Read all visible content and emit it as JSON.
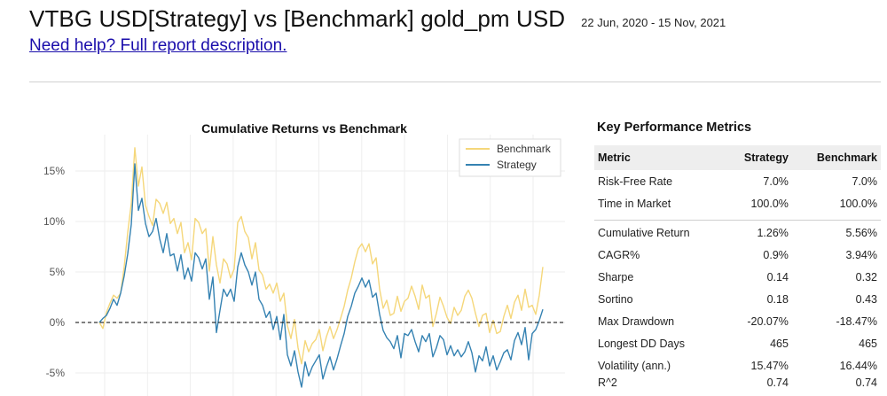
{
  "header": {
    "title": "VTBG USD[Strategy] vs [Benchmark] gold_pm USD",
    "date_range": "22 Jun, 2020 - 15 Nov, 2021",
    "help_link": "Need help? Full report description."
  },
  "chart_data": {
    "type": "line",
    "title": "Cumulative Returns vs Benchmark",
    "xlabel": "",
    "ylabel": "",
    "y_ticks": [
      "15%",
      "10%",
      "5%",
      "0%",
      "-5%"
    ],
    "y_tick_values": [
      15,
      10,
      5,
      0,
      -5
    ],
    "ylim": [
      -6.5,
      18.5
    ],
    "grid": true,
    "baseline": 0,
    "legend": "top-right",
    "x": [
      0,
      2,
      4,
      6,
      8,
      10,
      12,
      14,
      16,
      18,
      20,
      22,
      24,
      26,
      28,
      30,
      32,
      34,
      36,
      38,
      40,
      42,
      44,
      46,
      48,
      50,
      52,
      54,
      56,
      58,
      60,
      62,
      64,
      66,
      68,
      70,
      72,
      74,
      76,
      78,
      80,
      82,
      84,
      86,
      88,
      90,
      92,
      94,
      96,
      98,
      100,
      102,
      104,
      106,
      108,
      110,
      112,
      114,
      116,
      118,
      120,
      122,
      124,
      126,
      128,
      130,
      132,
      134,
      136,
      138,
      140,
      142,
      144,
      146,
      148,
      150,
      152,
      154,
      156,
      158,
      160,
      162,
      164,
      166,
      168,
      170,
      172,
      174,
      176,
      178,
      180,
      182,
      184,
      186,
      188,
      190,
      192,
      194,
      196,
      198,
      200,
      202,
      204,
      206,
      208,
      210,
      212,
      214,
      216,
      218,
      220,
      222,
      224,
      226,
      228,
      230,
      232,
      234,
      236,
      238,
      240,
      242,
      244,
      246,
      248,
      250
    ],
    "series": [
      {
        "name": "Benchmark",
        "color": "#f5d77a",
        "values": [
          0.0,
          -0.6,
          1.0,
          1.9,
          2.7,
          2.4,
          2.9,
          5.5,
          8.9,
          11.8,
          17.3,
          13.5,
          15.4,
          11.6,
          10.5,
          9.6,
          12.2,
          11.8,
          10.8,
          11.9,
          9.8,
          10.3,
          8.8,
          9.9,
          6.9,
          7.9,
          6.2,
          10.3,
          9.9,
          8.8,
          9.3,
          5.1,
          8.5,
          5.7,
          3.9,
          6.3,
          5.8,
          4.4,
          5.3,
          9.9,
          10.5,
          9.0,
          8.4,
          6.3,
          7.9,
          5.2,
          4.7,
          3.3,
          3.8,
          2.9,
          3.9,
          2.1,
          2.9,
          -0.3,
          -1.6,
          0.3,
          -2.5,
          -4.1,
          -1.8,
          -2.9,
          -2.1,
          -1.7,
          -0.7,
          -2.8,
          -1.4,
          -0.4,
          -1.6,
          -0.7,
          0.4,
          1.6,
          3.2,
          4.4,
          6.0,
          7.3,
          7.8,
          7.0,
          7.8,
          5.8,
          6.4,
          3.3,
          1.4,
          2.2,
          0.7,
          0.9,
          2.6,
          1.1,
          2.1,
          2.4,
          3.6,
          2.6,
          1.3,
          3.7,
          2.4,
          2.7,
          -0.4,
          0.9,
          2.5,
          1.6,
          0.5,
          -0.1,
          1.5,
          0.7,
          1.2,
          2.6,
          3.2,
          2.4,
          0.9,
          -0.4,
          0.7,
          0.9,
          -1.0,
          0.2,
          -1.1,
          -0.9,
          0.6,
          1.7,
          0.4,
          2.0,
          2.7,
          1.2,
          3.3,
          1.5,
          1.7,
          0.8,
          2.7,
          5.5
        ]
      },
      {
        "name": "Strategy",
        "color": "#3582b2",
        "values": [
          0.0,
          0.4,
          0.7,
          1.4,
          2.3,
          1.7,
          2.9,
          4.6,
          6.8,
          9.7,
          15.7,
          11.1,
          12.3,
          9.8,
          8.5,
          9.0,
          10.3,
          8.3,
          6.9,
          8.8,
          6.6,
          6.8,
          5.1,
          6.7,
          4.3,
          5.4,
          4.1,
          6.9,
          6.4,
          5.3,
          6.3,
          2.3,
          4.5,
          -1.0,
          1.2,
          3.3,
          2.6,
          3.3,
          2.1,
          5.5,
          6.9,
          5.7,
          5.0,
          3.7,
          5.0,
          2.3,
          1.7,
          0.5,
          1.1,
          -0.7,
          0.6,
          -1.7,
          0.8,
          -3.2,
          -4.3,
          -2.8,
          -4.9,
          -6.4,
          -3.9,
          -5.3,
          -4.4,
          -3.8,
          -3.2,
          -5.6,
          -4.4,
          -3.4,
          -4.7,
          -3.6,
          -2.3,
          -1.1,
          0.6,
          1.6,
          2.9,
          3.6,
          4.4,
          3.5,
          4.2,
          2.5,
          2.9,
          0.8,
          -0.8,
          -1.5,
          -1.9,
          -2.6,
          -1.3,
          -3.5,
          -1.1,
          -1.3,
          -0.7,
          -1.9,
          -2.9,
          -1.3,
          -1.9,
          -1.1,
          -3.4,
          -2.5,
          -1.3,
          -1.7,
          -3.2,
          -2.3,
          -3.3,
          -2.7,
          -3.4,
          -2.9,
          -1.9,
          -3.0,
          -4.9,
          -3.3,
          -3.8,
          -2.4,
          -4.3,
          -3.3,
          -4.7,
          -3.9,
          -3.0,
          -2.7,
          -3.7,
          -1.8,
          -1.0,
          -2.2,
          -0.5,
          -3.7,
          -1.1,
          -0.7,
          0.2,
          1.3
        ]
      }
    ]
  },
  "metrics": {
    "title": "Key Performance Metrics",
    "headers": {
      "metric": "Metric",
      "strategy": "Strategy",
      "benchmark": "Benchmark"
    },
    "rows": [
      {
        "metric": "Risk-Free Rate",
        "strategy": "7.0%",
        "benchmark": "7.0%"
      },
      {
        "metric": "Time in Market",
        "strategy": "100.0%",
        "benchmark": "100.0%"
      },
      {
        "metric": "Cumulative Return",
        "strategy": "1.26%",
        "benchmark": "5.56%"
      },
      {
        "metric": "CAGR%",
        "strategy": "0.9%",
        "benchmark": "3.94%"
      },
      {
        "metric": "Sharpe",
        "strategy": "0.14",
        "benchmark": "0.32"
      },
      {
        "metric": "Sortino",
        "strategy": "0.18",
        "benchmark": "0.43"
      },
      {
        "metric": "Max Drawdown",
        "strategy": "-20.07%",
        "benchmark": "-18.47%"
      },
      {
        "metric": "Longest DD Days",
        "strategy": "465",
        "benchmark": "465"
      },
      {
        "metric": "Volatility (ann.)",
        "strategy": "15.47%",
        "benchmark": "16.44%"
      },
      {
        "metric": "R^2",
        "strategy": "0.74",
        "benchmark": "0.74"
      }
    ]
  }
}
